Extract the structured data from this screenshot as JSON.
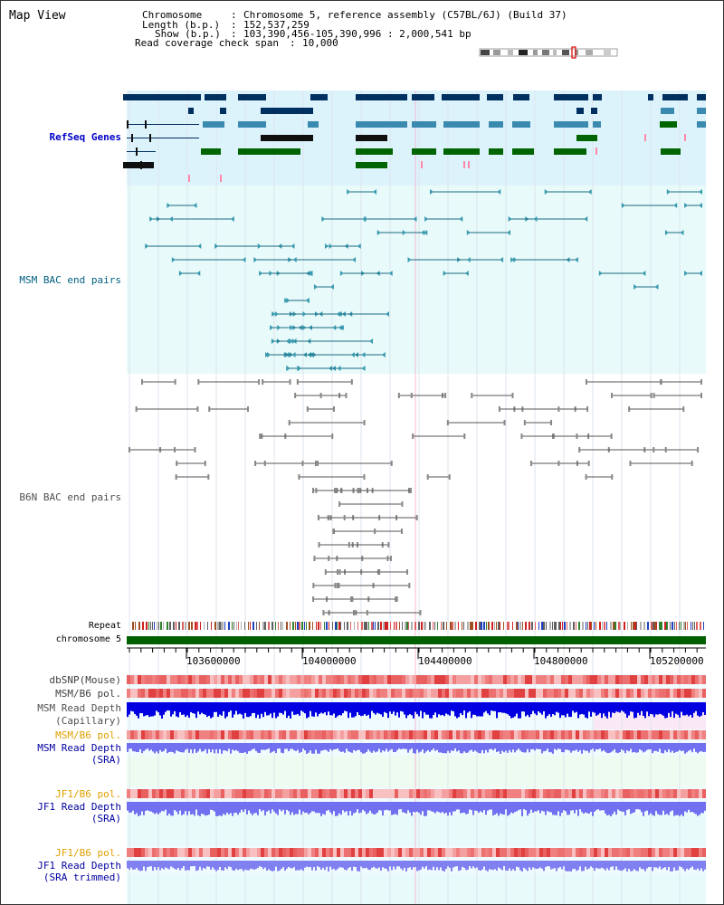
{
  "title": "Map View",
  "header": {
    "chromosome_key": "Chromosome",
    "chromosome_val": "Chromosome 5, reference assembly (C57BL/6J) (Build 37)",
    "length_key": "Length (b.p.)",
    "length_val": "152,537,259",
    "show_key": "Show (b.p.)",
    "show_val": "103,390,456-105,390,996 : 2,000,541 bp",
    "span_key": "Read coverage check span",
    "span_val": "10,000"
  },
  "labels": {
    "refseq": "RefSeq Genes",
    "msm_bac": "MSM BAC end pairs",
    "b6n_bac": "B6N BAC end pairs",
    "repeat": "Repeat",
    "chromosome": "chromosome 5",
    "dbsnp": "dbSNP(Mouse)",
    "msm_b6_pol_1": "MSM/B6 pol.",
    "msm_depth_cap_1": "MSM Read Depth",
    "msm_depth_cap_2": "(Capillary)",
    "msm_b6_pol_2": "MSM/B6 pol.",
    "msm_depth_sra_1": "MSM Read Depth",
    "msm_depth_sra_2": "(SRA)",
    "jf1_b6_pol_1": "JF1/B6 pol.",
    "jf1_depth_sra_1": "JF1 Read Depth",
    "jf1_depth_sra_2": "(SRA)",
    "jf1_b6_pol_2": "JF1/B6 pol.",
    "jf1_depth_trim_1": "JF1 Read Depth",
    "jf1_depth_trim_2": "(SRA trimmed)"
  },
  "axis": {
    "ticks": [
      "103600000",
      "104000000",
      "104400000",
      "104800000",
      "105200000"
    ]
  },
  "colors": {
    "refseq_label": "#0000c8",
    "msm_label": "#006080",
    "b6n_label": "#505050",
    "pol_label": "#e0a000",
    "depth_label": "#0000a0",
    "cap_label": "#505050"
  }
}
